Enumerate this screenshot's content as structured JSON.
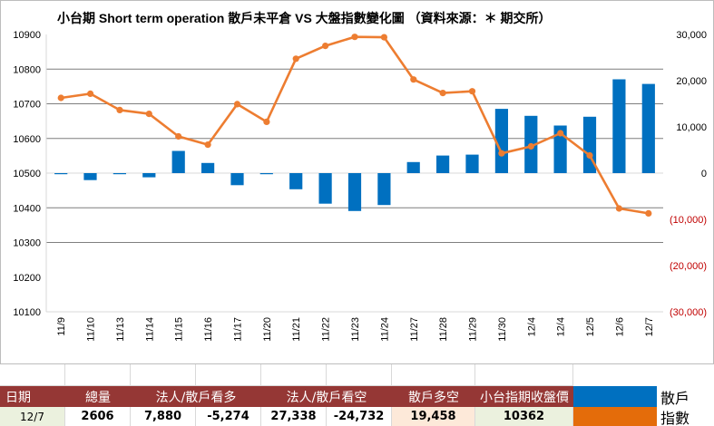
{
  "chart_data": {
    "type": "bar+line",
    "title": "小台期 Short term operation  散戶未平倉  VS 大盤指數變化圖 （資料來源：＊ 期交所）",
    "categories": [
      "11/9",
      "11/10",
      "11/13",
      "11/14",
      "11/15",
      "11/16",
      "11/17",
      "11/20",
      "11/21",
      "11/22",
      "11/23",
      "11/24",
      "11/27",
      "11/28",
      "11/29",
      "11/30",
      "12/4",
      "12/4",
      "12/5",
      "12/6",
      "12/7"
    ],
    "series": [
      {
        "name": "散戶",
        "type": "bar",
        "axis": "right",
        "color": "#0070c0",
        "values": [
          -200,
          -1500,
          -100,
          -900,
          4800,
          2200,
          -2600,
          -100,
          -3500,
          -6600,
          -8200,
          -6900,
          2400,
          3800,
          4000,
          13900,
          12400,
          10300,
          12200,
          20300,
          19300
        ]
      },
      {
        "name": "指數",
        "type": "line",
        "axis": "left",
        "color": "#ed7d31",
        "values": [
          10717,
          10729,
          10682,
          10671,
          10606,
          10582,
          10699,
          10648,
          10830,
          10867,
          10893,
          10892,
          10770,
          10731,
          10736,
          10557,
          10577,
          10615,
          10551,
          10398,
          10384
        ]
      }
    ],
    "y_left": {
      "min": 10100,
      "max": 10900,
      "step": 100,
      "ticks": [
        "10900",
        "10800",
        "10700",
        "10600",
        "10500",
        "10400",
        "10300",
        "10200",
        "10100"
      ]
    },
    "y_right": {
      "min": -30000,
      "max": 30000,
      "step": 10000,
      "ticks": [
        "30,000",
        "20,000",
        "10,000",
        "0",
        "(10,000)",
        "(20,000)",
        "(30,000)"
      ],
      "negative_color": "#c00000"
    },
    "gridlines_left_values": [
      10800,
      10700,
      10600,
      10400,
      10300
    ]
  },
  "table": {
    "headers": [
      "日期",
      "總量",
      "法人/散戶看多",
      "法人/散戶看空",
      "散戶多空",
      "小台指期收盤價"
    ],
    "row": {
      "date": "12/7",
      "total": "2606",
      "long_inst": "7,880",
      "long_retail": "-5,274",
      "short_inst": "27,338",
      "short_retail": "-24,732",
      "retail_net": "19,458",
      "close": "10362"
    },
    "legend": [
      {
        "label": "散戶",
        "color": "#0070c0"
      },
      {
        "label": "指數",
        "color": "#ed7d31"
      }
    ]
  }
}
